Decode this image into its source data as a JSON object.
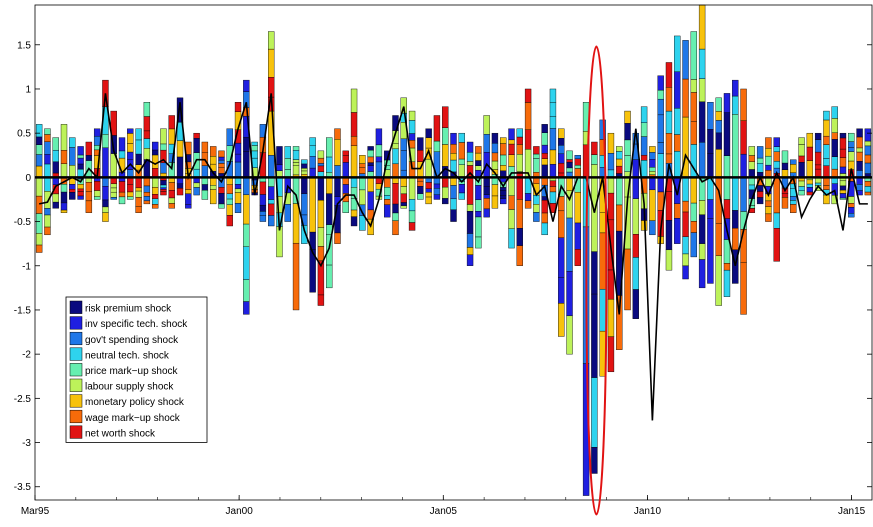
{
  "chart_data": {
    "type": "bar",
    "subtype": "stacked-bar-with-line",
    "title": "",
    "xlabel": "",
    "ylabel": "",
    "ylim": [
      -3.65,
      1.95
    ],
    "yticks": [
      -3.5,
      -3,
      -2.5,
      -2,
      -1.5,
      -1,
      -0.5,
      0,
      0.5,
      1,
      1.5
    ],
    "ytick_labels": [
      "-3.5",
      "-3",
      "-2.5",
      "-2",
      "-1.5",
      "-1",
      "-0.5",
      "0",
      "0.5",
      "1",
      "1.5"
    ],
    "xlim_quarters": [
      1995.0,
      2015.5
    ],
    "xticks": [
      {
        "label": "Mar95",
        "quarter": 1995.0
      },
      {
        "label": "Jan00",
        "quarter": 2000.0
      },
      {
        "label": "Jan05",
        "quarter": 2005.0
      },
      {
        "label": "Jan10",
        "quarter": 2010.0
      },
      {
        "label": "Jan15",
        "quarter": 2015.0
      }
    ],
    "grid": false,
    "legend_position": "lower-left",
    "series": [
      {
        "name": "risk premium shock",
        "color": "#0a0a7f"
      },
      {
        "name": "inv specific tech. shock",
        "color": "#1f1fe0"
      },
      {
        "name": "gov't spending shock",
        "color": "#1f77e8"
      },
      {
        "name": "neutral tech. shock",
        "color": "#2ed3ee"
      },
      {
        "name": "price mark−up shock",
        "color": "#66efb0"
      },
      {
        "name": "labour supply shock",
        "color": "#bdf25a"
      },
      {
        "name": "monetary policy shock",
        "color": "#f7c20c"
      },
      {
        "name": "wage mark−up shock",
        "color": "#f76b0a"
      },
      {
        "name": "net worth shock",
        "color": "#e11313"
      }
    ],
    "positive_totals": [
      0.6,
      0.55,
      0.45,
      0.6,
      0.45,
      0.35,
      0.4,
      0.55,
      1.1,
      0.75,
      0.45,
      0.55,
      0.55,
      0.85,
      0.4,
      0.55,
      0.7,
      0.9,
      0.4,
      0.5,
      0.4,
      0.35,
      0.3,
      0.55,
      0.85,
      1.1,
      0.4,
      0.6,
      1.65,
      0.35,
      0.35,
      0.35,
      0.2,
      0.45,
      0.3,
      0.45,
      0.55,
      0.3,
      1.0,
      0.25,
      0.35,
      0.55,
      0.3,
      0.7,
      0.9,
      0.75,
      0.45,
      0.55,
      0.7,
      0.8,
      0.5,
      0.5,
      0.4,
      0.35,
      0.7,
      0.5,
      0.45,
      0.55,
      0.55,
      1.0,
      0.35,
      0.6,
      1.0,
      0.55,
      0.3,
      0.25,
      0.85,
      0.4,
      0.65,
      0.5,
      0.35,
      0.75,
      0.5,
      0.8,
      0.35,
      1.15,
      1.3,
      1.6,
      1.55,
      1.65,
      1.95,
      0.85,
      0.9,
      0.95,
      1.1,
      1.0,
      0.35,
      0.35,
      0.45,
      0.45,
      0.3,
      0.2,
      0.45,
      0.5,
      0.5,
      0.75,
      0.8,
      0.5,
      0.5,
      0.55,
      0.55
    ],
    "negative_totals": [
      -0.85,
      -0.65,
      -0.35,
      -0.4,
      -0.25,
      -0.25,
      -0.4,
      -0.25,
      -0.5,
      -0.25,
      -0.3,
      -0.25,
      -0.4,
      -0.3,
      -0.35,
      -0.2,
      -0.35,
      -0.2,
      -0.35,
      -0.2,
      -0.25,
      -0.3,
      -0.35,
      -0.55,
      -0.4,
      -1.55,
      -0.2,
      -0.5,
      -0.55,
      -0.9,
      -0.5,
      -1.5,
      -0.75,
      -1.3,
      -1.45,
      -1.25,
      -0.75,
      -0.4,
      -0.55,
      -0.6,
      -0.65,
      -0.25,
      -0.45,
      -0.65,
      -0.35,
      -0.6,
      -0.25,
      -0.3,
      -0.25,
      -0.3,
      -0.5,
      -0.25,
      -1.0,
      -0.8,
      -0.45,
      -0.35,
      -0.3,
      -0.8,
      -1.0,
      -0.35,
      -0.5,
      -0.65,
      -0.4,
      -1.8,
      -2.0,
      -1.0,
      -3.6,
      -3.35,
      -2.25,
      -2.2,
      -1.95,
      -1.5,
      -1.6,
      -0.6,
      -0.65,
      -0.75,
      -1.05,
      -0.75,
      -1.15,
      -0.9,
      -1.25,
      -1.2,
      -1.45,
      -1.35,
      -1.2,
      -1.55,
      -0.4,
      -0.3,
      -0.5,
      -0.95,
      -0.35,
      -0.4,
      -0.2,
      -0.2,
      -0.15,
      -0.3,
      -0.3,
      -0.25,
      -0.45,
      -0.2,
      -0.2
    ],
    "line_total": [
      -0.3,
      -0.28,
      -0.1,
      -0.05,
      0.0,
      -0.05,
      0.1,
      0.0,
      0.95,
      0.3,
      0.05,
      0.15,
      0.05,
      0.2,
      0.15,
      0.2,
      0.1,
      0.85,
      0.0,
      0.2,
      0.2,
      0.05,
      -0.05,
      0.15,
      0.55,
      0.85,
      -0.2,
      0.3,
      0.95,
      -0.6,
      -0.1,
      -0.2,
      -0.6,
      -0.85,
      -1.0,
      -0.8,
      -0.3,
      -0.2,
      -0.2,
      -0.4,
      -0.55,
      -0.25,
      0.2,
      0.5,
      0.8,
      0.1,
      0.1,
      0.3,
      0.0,
      0.1,
      0.05,
      -0.05,
      0.05,
      -0.05,
      0.15,
      0.05,
      -0.1,
      0.05,
      0.05,
      0.05,
      -0.2,
      -0.1,
      -0.5,
      -0.1,
      -0.25,
      0.0,
      0.0,
      -0.4,
      0.0,
      -0.8,
      -1.55,
      -0.25,
      0.55,
      -0.3,
      -2.75,
      -0.6,
      0.15,
      -0.2,
      0.25,
      0.1,
      -0.05,
      0.0,
      -0.15,
      -0.6,
      -1.0,
      -0.6,
      -0.25,
      0.0,
      -0.2,
      0.05,
      -0.15,
      0.0,
      -0.45,
      -0.25,
      -0.1,
      -0.2,
      -0.15,
      -0.6,
      0.1,
      -0.3,
      -0.3
    ],
    "highlight": {
      "shape": "ellipse",
      "color": "#e11313",
      "quarter": 2008.75
    }
  }
}
